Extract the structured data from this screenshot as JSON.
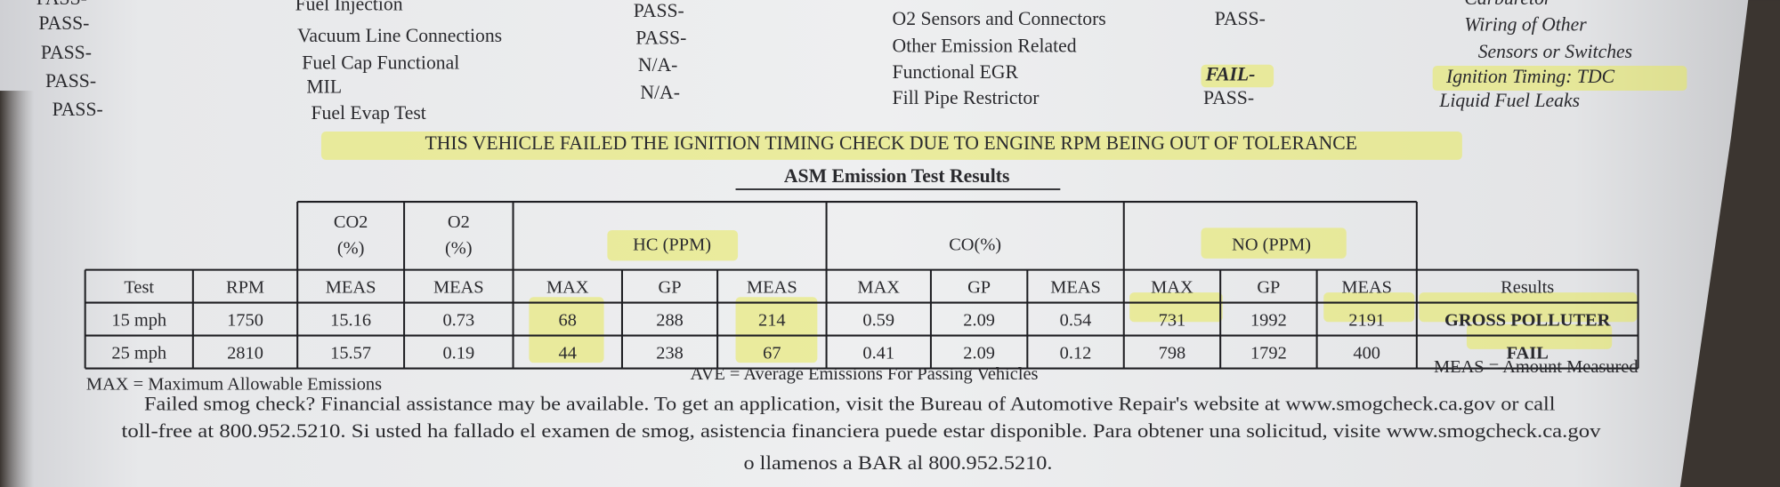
{
  "checklist": {
    "col_a": [
      "PASS-",
      "PASS-",
      "PASS-",
      "PASS-",
      "PASS-"
    ],
    "col_b": [
      "Fuel Injection",
      "Vacuum Line Connections",
      "Fuel Cap Functional",
      "MIL",
      "Fuel Evap Test"
    ],
    "col_c": [
      "PASS-",
      "PASS-",
      "N/A-",
      "N/A-"
    ],
    "col_d": [
      "O2 Sensors and Connectors",
      "Other Emission Related",
      "Functional EGR",
      "Fill Pipe Restrictor"
    ],
    "col_e": [
      "PASS-",
      "FAIL-",
      "PASS-"
    ],
    "col_f": [
      "Carburetor",
      "Wiring of Other",
      "Sensors or Switches",
      "Ignition Timing: TDC",
      "Liquid Fuel Leaks"
    ]
  },
  "notice": "THIS VEHICLE FAILED THE IGNITION TIMING CHECK DUE TO ENGINE RPM BEING OUT OF TOLERANCE",
  "table": {
    "title": "ASM Emission Test Results",
    "group_headers": [
      [
        "CO2",
        "(%)"
      ],
      [
        "O2",
        "(%)"
      ],
      [
        "HC (PPM)"
      ],
      [
        "CO(%)"
      ],
      [
        "NO (PPM)"
      ]
    ],
    "columns": [
      "Test",
      "RPM",
      "MEAS",
      "MEAS",
      "MAX",
      "GP",
      "MEAS",
      "MAX",
      "GP",
      "MEAS",
      "MAX",
      "GP",
      "MEAS",
      "Results"
    ],
    "rows": [
      [
        "15 mph",
        1750,
        15.16,
        0.73,
        68,
        288,
        214,
        0.59,
        2.09,
        0.54,
        731,
        1992,
        2191,
        "GROSS POLLUTER"
      ],
      [
        "25 mph",
        2810,
        15.57,
        0.19,
        44,
        238,
        67,
        0.41,
        2.09,
        0.12,
        798,
        1792,
        400,
        "FAIL"
      ]
    ]
  },
  "legend": [
    "MAX = Maximum Allowable Emissions",
    "AVE = Average Emissions For Passing Vehicles",
    "MEAS = Amount Measured"
  ],
  "footer": [
    "Failed smog check? Financial assistance may be available. To get an application, visit the Bureau of Automotive Repair's website at www.smogcheck.ca.gov or call",
    "toll-free at 800.952.5210. Si usted ha fallado el examen de smog, asistencia financiera puede estar disponible. Para obtener una solicitud, visite www.smogcheck.ca.gov",
    "o llamenos a BAR al 800.952.5210."
  ]
}
